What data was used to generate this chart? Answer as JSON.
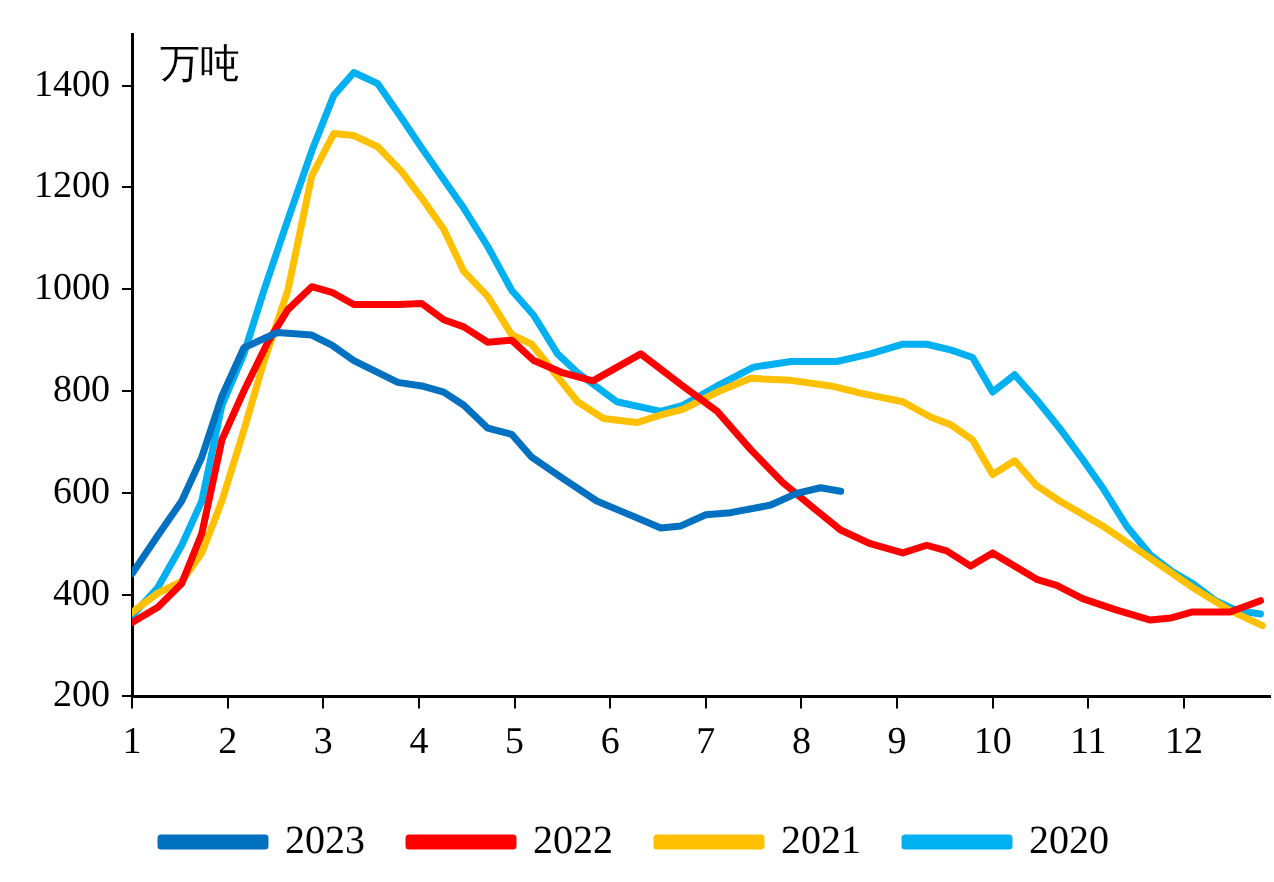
{
  "chart_data": {
    "type": "line",
    "ylabel": "万吨",
    "xlim": [
      1,
      12.9
    ],
    "xticks": [
      1,
      2,
      3,
      4,
      5,
      6,
      7,
      8,
      9,
      10,
      11,
      12
    ],
    "ylim": [
      200,
      1500
    ],
    "yticks": [
      200,
      400,
      600,
      800,
      1000,
      1200,
      1400
    ],
    "grid": false,
    "legend": "bottom",
    "marker": "none",
    "line_style": "solid",
    "series": [
      {
        "name": "2023",
        "color": "#0070c0",
        "x": [
          1,
          1.27,
          1.52,
          1.73,
          1.94,
          2.17,
          2.52,
          2.88,
          3.09,
          3.32,
          3.78,
          4.03,
          4.26,
          4.47,
          4.72,
          4.97,
          5.18,
          5.5,
          5.86,
          6.1,
          6.53,
          6.74,
          7,
          7.26,
          7.68,
          7.95,
          8.2,
          8.41
        ],
        "values": [
          441,
          516,
          584,
          670,
          790,
          885,
          915,
          910,
          890,
          860,
          817,
          810,
          798,
          772,
          727,
          715,
          670,
          629,
          584,
          565,
          531,
          535,
          557,
          561,
          576,
          599,
          610,
          603
        ]
      },
      {
        "name": "2022",
        "color": "#ff0000",
        "x": [
          1,
          1.27,
          1.52,
          1.73,
          1.94,
          2.17,
          2.42,
          2.63,
          2.88,
          3.09,
          3.32,
          3.78,
          4.03,
          4.26,
          4.47,
          4.72,
          4.97,
          5.2,
          5.5,
          5.82,
          6.32,
          6.76,
          7.12,
          7.47,
          7.8,
          8.16,
          8.41,
          8.72,
          9.06,
          9.31,
          9.52,
          9.77,
          10,
          10.46,
          10.67,
          10.94,
          11.29,
          11.65,
          11.86,
          12.09,
          12.48,
          12.8
        ],
        "values": [
          345,
          375,
          422,
          520,
          704,
          800,
          896,
          960,
          1005,
          994,
          970,
          970,
          972,
          940,
          926,
          896,
          900,
          860,
          836,
          820,
          873,
          810,
          760,
          685,
          621,
          565,
          527,
          500,
          482,
          497,
          486,
          456,
          482,
          430,
          418,
          392,
          370,
          350,
          354,
          366,
          366,
          388
        ]
      },
      {
        "name": "2021",
        "color": "#ffc000",
        "x": [
          1,
          1.27,
          1.52,
          1.73,
          1.94,
          2.17,
          2.38,
          2.63,
          2.88,
          3.11,
          3.32,
          3.57,
          3.82,
          4.05,
          4.26,
          4.47,
          4.72,
          4.97,
          5.18,
          5.45,
          5.66,
          5.93,
          6.28,
          6.53,
          6.76,
          7.12,
          7.47,
          7.89,
          8.31,
          8.64,
          9.06,
          9.35,
          9.56,
          9.79,
          10,
          10.23,
          10.46,
          10.7,
          11.15,
          11.65,
          12.09,
          12.48,
          12.82
        ],
        "values": [
          365,
          403,
          426,
          482,
          584,
          723,
          858,
          998,
          1223,
          1306,
          1302,
          1280,
          1231,
          1174,
          1118,
          1035,
          986,
          911,
          892,
          828,
          779,
          746,
          738,
          753,
          764,
          798,
          825,
          821,
          810,
          795,
          779,
          749,
          734,
          704,
          636,
          663,
          614,
          584,
          535,
          471,
          414,
          369,
          339
        ]
      },
      {
        "name": "2020",
        "color": "#00b0f0",
        "x": [
          1,
          1.27,
          1.52,
          1.73,
          1.94,
          2.17,
          2.38,
          2.63,
          2.88,
          3.11,
          3.32,
          3.57,
          3.82,
          4.05,
          4.47,
          4.72,
          4.97,
          5.2,
          5.45,
          5.66,
          6.07,
          6.53,
          6.76,
          7.12,
          7.5,
          7.89,
          8.37,
          8.72,
          9.06,
          9.31,
          9.56,
          9.79,
          10,
          10.23,
          10.46,
          10.7,
          10.94,
          11.15,
          11.4,
          11.65,
          11.88,
          12.09,
          12.33,
          12.55,
          12.8
        ],
        "values": [
          358,
          414,
          497,
          584,
          772,
          873,
          998,
          1137,
          1272,
          1381,
          1426,
          1404,
          1336,
          1272,
          1159,
          1084,
          998,
          949,
          873,
          836,
          779,
          760,
          772,
          810,
          847,
          858,
          858,
          873,
          892,
          892,
          881,
          866,
          798,
          832,
          783,
          727,
          666,
          610,
          535,
          478,
          445,
          422,
          388,
          369,
          362
        ]
      }
    ]
  }
}
